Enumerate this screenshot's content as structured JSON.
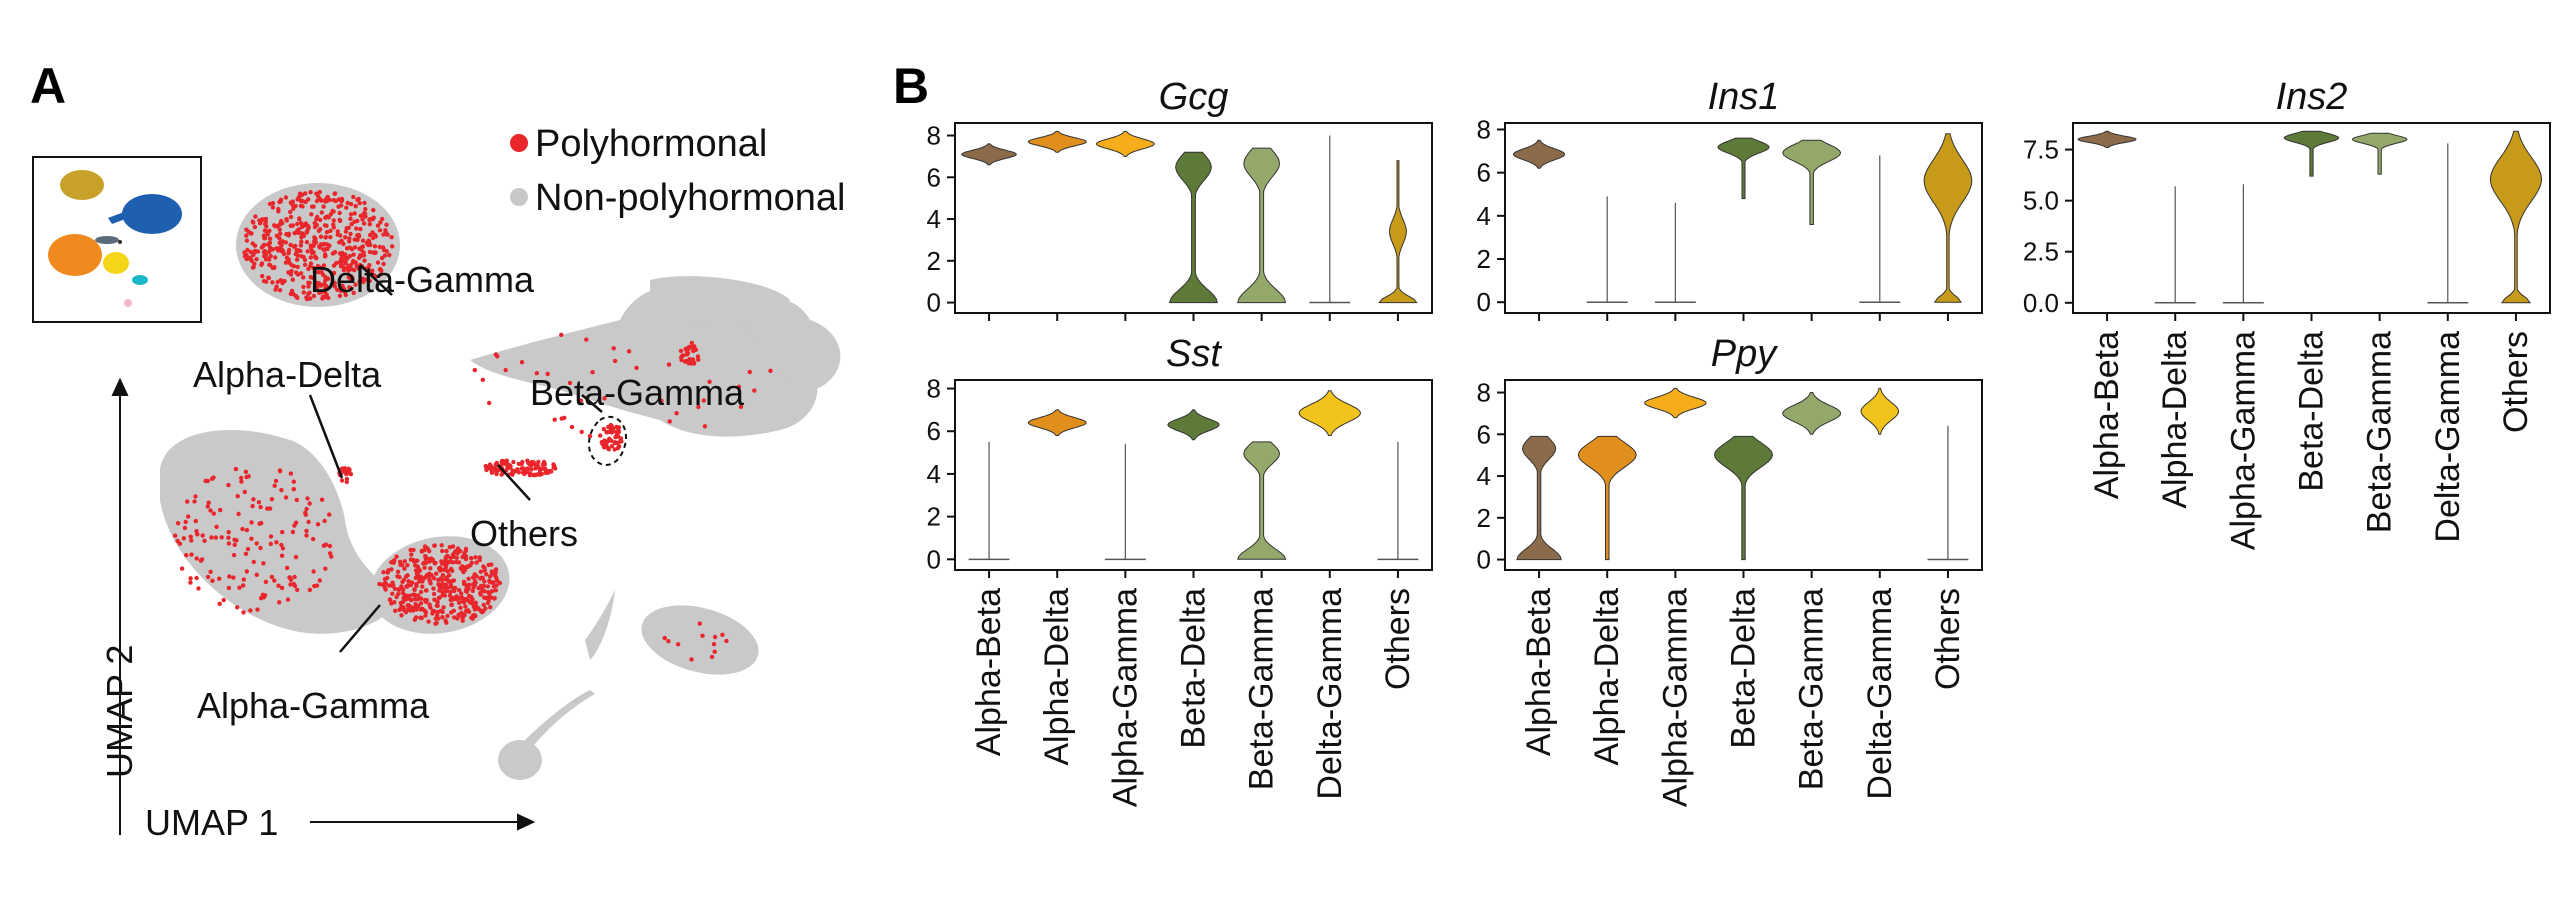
{
  "panel_a": {
    "letter": "A",
    "legend": [
      {
        "label": "Polyhormonal",
        "color": "#e8262b"
      },
      {
        "label": "Non-polyhormonal",
        "color": "#c8c8c8"
      }
    ],
    "x_axis_label": "UMAP 1",
    "y_axis_label": "UMAP 2",
    "annotations": [
      "Delta-Gamma",
      "Alpha-Delta",
      "Beta-Gamma",
      "Others",
      "Alpha-Gamma"
    ]
  },
  "panel_b": {
    "letter": "B"
  },
  "colors": {
    "Alpha-Beta": "#8b6b4a",
    "Alpha-Delta": "#e08f1c",
    "Alpha-Gamma": "#f5ad1c",
    "Beta-Delta": "#5e7a38",
    "Beta-Gamma": "#93a86a",
    "Delta-Gamma": "#f2c31a",
    "Others": "#c79a1a"
  },
  "chart_data": [
    {
      "type": "violin",
      "title": "Gcg",
      "categories": [
        "Alpha-Beta",
        "Alpha-Delta",
        "Alpha-Gamma",
        "Beta-Delta",
        "Beta-Gamma",
        "Delta-Gamma",
        "Others"
      ],
      "yticks": [
        "0",
        "2",
        "4",
        "6",
        "8"
      ],
      "ylim": [
        -0.5,
        8.6
      ],
      "violins": [
        {
          "min": 6.6,
          "max": 7.6,
          "mode": 7.1,
          "width": 0.8,
          "shape": "tight"
        },
        {
          "min": 7.2,
          "max": 8.2,
          "mode": 7.9,
          "width": 0.85,
          "shape": "tight"
        },
        {
          "min": 7.0,
          "max": 8.2,
          "mode": 7.7,
          "width": 0.85,
          "shape": "tight"
        },
        {
          "min": 0,
          "max": 7.2,
          "mode": 0.5,
          "width": 0.7,
          "shape": "bimodal_low"
        },
        {
          "min": 0,
          "max": 7.4,
          "mode": 0.5,
          "width": 0.7,
          "shape": "bimodal_low"
        },
        {
          "min": 0,
          "max": 8.0,
          "mode": 0,
          "width": 0.05,
          "shape": "line"
        },
        {
          "min": 0,
          "max": 6.8,
          "mode": 0.3,
          "width": 0.55,
          "shape": "others_gcg"
        }
      ]
    },
    {
      "type": "violin",
      "title": "Ins1",
      "categories": [
        "Alpha-Beta",
        "Alpha-Delta",
        "Alpha-Gamma",
        "Beta-Delta",
        "Beta-Gamma",
        "Delta-Gamma",
        "Others"
      ],
      "yticks": [
        "0",
        "2",
        "4",
        "6",
        "8"
      ],
      "ylim": [
        -0.5,
        8.3
      ],
      "violins": [
        {
          "min": 6.2,
          "max": 7.5,
          "mode": 7.0,
          "width": 0.75,
          "shape": "tight"
        },
        {
          "min": 0,
          "max": 4.9,
          "mode": 0,
          "width": 0.05,
          "shape": "line"
        },
        {
          "min": 0,
          "max": 4.6,
          "mode": 0,
          "width": 0.05,
          "shape": "line"
        },
        {
          "min": 4.8,
          "max": 7.6,
          "mode": 7.0,
          "width": 0.75,
          "shape": "upper_tail"
        },
        {
          "min": 3.6,
          "max": 7.5,
          "mode": 7.0,
          "width": 0.85,
          "shape": "upper_tail"
        },
        {
          "min": 0,
          "max": 6.8,
          "mode": 0,
          "width": 0.05,
          "shape": "line"
        },
        {
          "min": 0,
          "max": 7.8,
          "mode": 5.5,
          "width": 0.7,
          "shape": "others_ins"
        }
      ]
    },
    {
      "type": "violin",
      "title": "Ins2",
      "categories": [
        "Alpha-Beta",
        "Alpha-Delta",
        "Alpha-Gamma",
        "Beta-Delta",
        "Beta-Gamma",
        "Delta-Gamma",
        "Others"
      ],
      "yticks": [
        "0.0",
        "2.5",
        "5.0",
        "7.5"
      ],
      "ylim": [
        -0.5,
        8.8
      ],
      "violins": [
        {
          "min": 7.6,
          "max": 8.4,
          "mode": 7.9,
          "width": 0.85,
          "shape": "tight"
        },
        {
          "min": 0,
          "max": 5.7,
          "mode": 0,
          "width": 0.05,
          "shape": "line"
        },
        {
          "min": 0,
          "max": 5.8,
          "mode": 0,
          "width": 0.05,
          "shape": "line"
        },
        {
          "min": 6.2,
          "max": 8.4,
          "mode": 7.9,
          "width": 0.8,
          "shape": "upper_tail"
        },
        {
          "min": 6.3,
          "max": 8.3,
          "mode": 7.9,
          "width": 0.8,
          "shape": "upper_tail"
        },
        {
          "min": 0,
          "max": 7.8,
          "mode": 0,
          "width": 0.05,
          "shape": "line"
        },
        {
          "min": 0,
          "max": 8.4,
          "mode": 6.0,
          "width": 0.75,
          "shape": "others_ins"
        }
      ]
    },
    {
      "type": "violin",
      "title": "Sst",
      "categories": [
        "Alpha-Beta",
        "Alpha-Delta",
        "Alpha-Gamma",
        "Beta-Delta",
        "Beta-Gamma",
        "Delta-Gamma",
        "Others"
      ],
      "yticks": [
        "0",
        "2",
        "4",
        "6",
        "8"
      ],
      "ylim": [
        -0.5,
        8.4
      ],
      "violins": [
        {
          "min": 0,
          "max": 5.5,
          "mode": 0,
          "width": 0.05,
          "shape": "line"
        },
        {
          "min": 5.8,
          "max": 7.0,
          "mode": 6.4,
          "width": 0.85,
          "shape": "tight"
        },
        {
          "min": 0,
          "max": 5.4,
          "mode": 0,
          "width": 0.05,
          "shape": "line"
        },
        {
          "min": 5.6,
          "max": 7.0,
          "mode": 6.2,
          "width": 0.75,
          "shape": "tight"
        },
        {
          "min": 0,
          "max": 5.5,
          "mode": 0.5,
          "width": 0.7,
          "shape": "bimodal_low"
        },
        {
          "min": 5.8,
          "max": 7.9,
          "mode": 7.2,
          "width": 0.9,
          "shape": "tight"
        },
        {
          "min": 0,
          "max": 5.5,
          "mode": 0,
          "width": 0.05,
          "shape": "line"
        }
      ]
    },
    {
      "type": "violin",
      "title": "Ppy",
      "categories": [
        "Alpha-Beta",
        "Alpha-Delta",
        "Alpha-Gamma",
        "Beta-Delta",
        "Beta-Gamma",
        "Delta-Gamma",
        "Others"
      ],
      "yticks": [
        "0",
        "2",
        "4",
        "6",
        "8"
      ],
      "ylim": [
        -0.5,
        8.6
      ],
      "violins": [
        {
          "min": 0,
          "max": 5.9,
          "mode": 0.5,
          "width": 0.65,
          "shape": "bimodal_low"
        },
        {
          "min": 0,
          "max": 5.9,
          "mode": 5.5,
          "width": 0.85,
          "shape": "upper_tail"
        },
        {
          "min": 6.8,
          "max": 8.2,
          "mode": 7.6,
          "width": 0.9,
          "shape": "tight"
        },
        {
          "min": 0,
          "max": 5.9,
          "mode": 5.4,
          "width": 0.85,
          "shape": "upper_tail"
        },
        {
          "min": 6.0,
          "max": 8.0,
          "mode": 7.3,
          "width": 0.85,
          "shape": "tight"
        },
        {
          "min": 6.0,
          "max": 8.2,
          "mode": 7.1,
          "width": 0.55,
          "shape": "tight"
        },
        {
          "min": 0,
          "max": 6.4,
          "mode": 0,
          "width": 0.05,
          "shape": "line"
        }
      ]
    }
  ]
}
